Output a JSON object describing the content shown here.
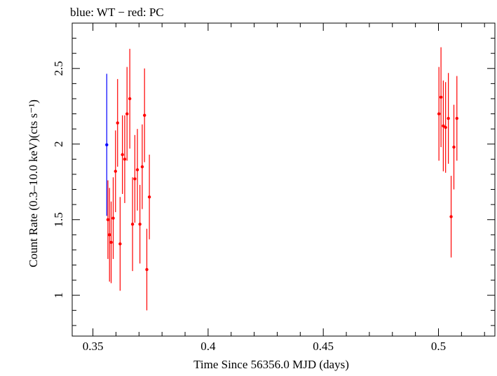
{
  "chart_data": {
    "type": "scatter",
    "title": "blue: WT − red: PC",
    "xlabel": "Time Since 56356.0 MJD (days)",
    "ylabel": "Count Rate (0.3–10.0 keV)(cts s⁻¹)",
    "xlim": [
      0.341,
      0.5245
    ],
    "ylim": [
      0.73,
      2.8
    ],
    "xticks": [
      0.35,
      0.4,
      0.45,
      0.5
    ],
    "xtick_labels": [
      "0.35",
      "0.4",
      "0.45",
      "0.5"
    ],
    "yticks": [
      1,
      1.5,
      2,
      2.5
    ],
    "ytick_labels": [
      "1",
      "1.5",
      "2",
      "2.5"
    ],
    "grid": false,
    "series": [
      {
        "name": "WT",
        "color": "#0000ff",
        "points": [
          {
            "x": 0.356,
            "y": 1.995,
            "err": 0.47
          }
        ]
      },
      {
        "name": "PC",
        "color": "#ff0000",
        "points": [
          {
            "x": 0.3565,
            "y": 1.5,
            "err": 0.26
          },
          {
            "x": 0.3572,
            "y": 1.4,
            "err": 0.31
          },
          {
            "x": 0.3579,
            "y": 1.35,
            "err": 0.27
          },
          {
            "x": 0.3588,
            "y": 1.51,
            "err": 0.27
          },
          {
            "x": 0.3598,
            "y": 1.82,
            "err": 0.27
          },
          {
            "x": 0.3607,
            "y": 2.14,
            "err": 0.29
          },
          {
            "x": 0.3618,
            "y": 1.34,
            "err": 0.31
          },
          {
            "x": 0.3628,
            "y": 1.93,
            "err": 0.26
          },
          {
            "x": 0.3638,
            "y": 1.9,
            "err": 0.29
          },
          {
            "x": 0.3648,
            "y": 2.2,
            "err": 0.31
          },
          {
            "x": 0.366,
            "y": 2.3,
            "err": 0.33
          },
          {
            "x": 0.3672,
            "y": 1.47,
            "err": 0.31
          },
          {
            "x": 0.3682,
            "y": 1.77,
            "err": 0.29
          },
          {
            "x": 0.3693,
            "y": 1.83,
            "err": 0.27
          },
          {
            "x": 0.3704,
            "y": 1.47,
            "err": 0.26
          },
          {
            "x": 0.3714,
            "y": 1.85,
            "err": 0.28
          },
          {
            "x": 0.3724,
            "y": 2.19,
            "err": 0.31
          },
          {
            "x": 0.3734,
            "y": 1.17,
            "err": 0.27
          },
          {
            "x": 0.3745,
            "y": 1.65,
            "err": 0.28
          },
          {
            "x": 0.5002,
            "y": 2.2,
            "err": 0.31
          },
          {
            "x": 0.5011,
            "y": 2.31,
            "err": 0.33
          },
          {
            "x": 0.5021,
            "y": 2.12,
            "err": 0.3
          },
          {
            "x": 0.5031,
            "y": 2.11,
            "err": 0.3
          },
          {
            "x": 0.5043,
            "y": 2.17,
            "err": 0.3
          },
          {
            "x": 0.5055,
            "y": 1.52,
            "err": 0.27
          },
          {
            "x": 0.5067,
            "y": 1.98,
            "err": 0.28
          },
          {
            "x": 0.508,
            "y": 2.17,
            "err": 0.28
          }
        ]
      }
    ]
  }
}
